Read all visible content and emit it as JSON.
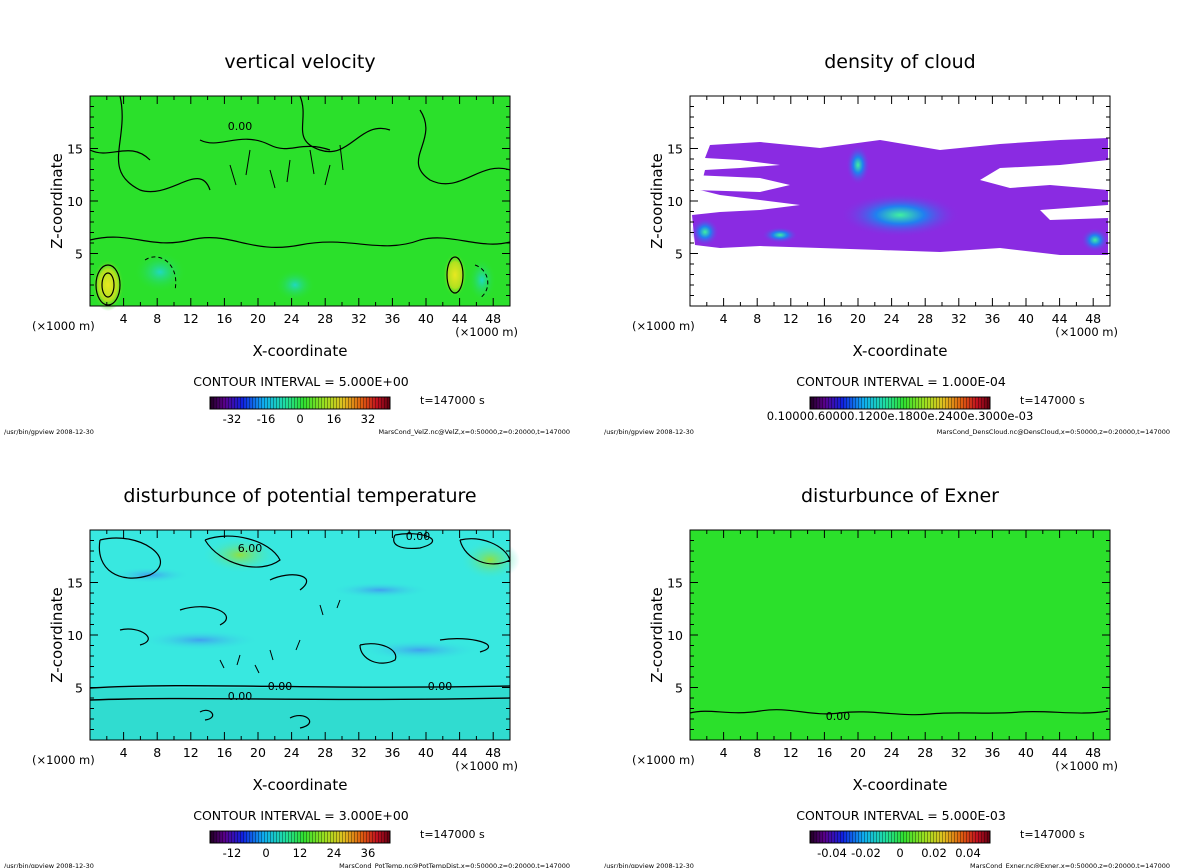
{
  "colors": {
    "background": "#ffffff",
    "green_field": "#2be02b",
    "cyan_field": "#38e8e0",
    "purple_cloud": "#8a2be2",
    "contour": "#000000"
  },
  "chart_data": [
    {
      "type": "heatmap",
      "title": "vertical velocity",
      "xlabel": "X-coordinate",
      "ylabel": "Z-coordinate",
      "xunit_left": "(×1000 m)",
      "xunit_right": "(×1000 m)",
      "xlim": [
        0,
        50
      ],
      "ylim": [
        0,
        20
      ],
      "xticks": [
        "4",
        "8",
        "12",
        "16",
        "20",
        "24",
        "28",
        "32",
        "36",
        "40",
        "44",
        "48"
      ],
      "yticks": [
        "5",
        "10",
        "15"
      ],
      "contour_interval": "CONTOUR INTERVAL = 5.000E+00",
      "colorbar_ticks": [
        "-32",
        "-16",
        "0",
        "16",
        "32"
      ],
      "time": "t=147000 s",
      "footer_left": "/usr/bin/gpview  2008-12-30",
      "footer_right": "MarsCond_VelZ.nc@VelZ,x=0:50000,z=0:20000,t=147000",
      "contour_labels": [
        "0.00"
      ]
    },
    {
      "type": "heatmap",
      "title": "density of cloud",
      "xlabel": "X-coordinate",
      "ylabel": "Z-coordinate",
      "xunit_left": "(×1000 m)",
      "xunit_right": "(×1000 m)",
      "xlim": [
        0,
        50
      ],
      "ylim": [
        0,
        20
      ],
      "xticks": [
        "4",
        "8",
        "12",
        "16",
        "20",
        "24",
        "28",
        "32",
        "36",
        "40",
        "44",
        "48"
      ],
      "yticks": [
        "5",
        "10",
        "15"
      ],
      "contour_interval": "CONTOUR INTERVAL = 1.000E-04",
      "colorbar_ticks_text": "0.10000.60000.1200e.1800e.2400e.3000e-03",
      "time": "t=147000 s",
      "footer_left": "/usr/bin/gpview  2008-12-30",
      "footer_right": "MarsCond_DensCloud.nc@DensCloud,x=0:50000,z=0:20000,t=147000",
      "contour_labels": []
    },
    {
      "type": "heatmap",
      "title": "disturbunce of potential temperature",
      "xlabel": "X-coordinate",
      "ylabel": "Z-coordinate",
      "xunit_left": "(×1000 m)",
      "xunit_right": "(×1000 m)",
      "xlim": [
        0,
        50
      ],
      "ylim": [
        0,
        20
      ],
      "xticks": [
        "4",
        "8",
        "12",
        "16",
        "20",
        "24",
        "28",
        "32",
        "36",
        "40",
        "44",
        "48"
      ],
      "yticks": [
        "5",
        "10",
        "15"
      ],
      "contour_interval": "CONTOUR INTERVAL = 3.000E+00",
      "colorbar_ticks": [
        "-12",
        "0",
        "12",
        "24",
        "36"
      ],
      "time": "t=147000 s",
      "footer_left": "/usr/bin/gpview  2008-12-30",
      "footer_right": "MarsCond_PotTemp.nc@PotTempDist,x=0:50000,z=0:20000,t=147000",
      "contour_labels": [
        "0.00",
        "0.00",
        "0.00",
        "0.00",
        "6.00"
      ]
    },
    {
      "type": "heatmap",
      "title": "disturbunce of Exner",
      "xlabel": "X-coordinate",
      "ylabel": "Z-coordinate",
      "xunit_left": "(×1000 m)",
      "xunit_right": "(×1000 m)",
      "xlim": [
        0,
        50
      ],
      "ylim": [
        0,
        20
      ],
      "xticks": [
        "4",
        "8",
        "12",
        "16",
        "20",
        "24",
        "28",
        "32",
        "36",
        "40",
        "44",
        "48"
      ],
      "yticks": [
        "5",
        "10",
        "15"
      ],
      "contour_interval": "CONTOUR INTERVAL = 5.000E-03",
      "colorbar_ticks": [
        "-0.04",
        "-0.02",
        "0",
        "0.02",
        "0.04"
      ],
      "time": "t=147000 s",
      "footer_left": "/usr/bin/gpview  2008-12-30",
      "footer_right": "MarsCond_Exner.nc@Exner,x=0:50000,z=0:20000,t=147000",
      "contour_labels": [
        "0.00"
      ]
    }
  ]
}
